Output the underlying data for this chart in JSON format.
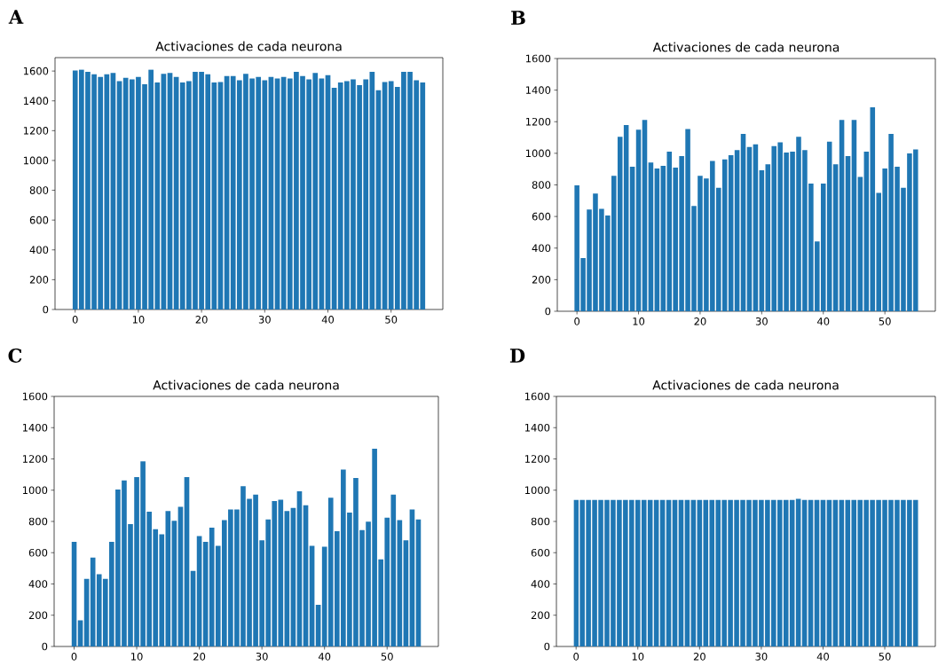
{
  "chart_data": [
    {
      "type": "bar",
      "title": "Activaciones de cada neurona",
      "annotations": [
        "A"
      ],
      "color": "#1f77b4",
      "xlim": [
        -3.19,
        58.19
      ],
      "xticks": [
        0,
        10,
        20,
        30,
        40,
        50
      ],
      "ylim": [
        0,
        1690
      ],
      "yticks": [
        0,
        200,
        400,
        600,
        800,
        1000,
        1200,
        1400,
        1600
      ],
      "x": [
        0,
        1,
        2,
        3,
        4,
        5,
        6,
        7,
        8,
        9,
        10,
        11,
        12,
        13,
        14,
        15,
        16,
        17,
        18,
        19,
        20,
        21,
        22,
        23,
        24,
        25,
        26,
        27,
        28,
        29,
        30,
        31,
        32,
        33,
        34,
        35,
        36,
        37,
        38,
        39,
        40,
        41,
        42,
        43,
        44,
        45,
        46,
        47,
        48,
        49,
        50,
        51,
        52,
        53,
        54,
        55
      ],
      "values": [
        1604,
        1610,
        1594,
        1578,
        1560,
        1578,
        1588,
        1532,
        1554,
        1544,
        1560,
        1511,
        1610,
        1523,
        1582,
        1588,
        1560,
        1523,
        1532,
        1594,
        1594,
        1578,
        1523,
        1526,
        1566,
        1566,
        1538,
        1582,
        1550,
        1560,
        1538,
        1560,
        1550,
        1560,
        1550,
        1594,
        1566,
        1544,
        1588,
        1550,
        1572,
        1487,
        1523,
        1532,
        1544,
        1505,
        1544,
        1594,
        1471,
        1526,
        1532,
        1493,
        1594,
        1594,
        1538,
        1523
      ]
    },
    {
      "type": "bar",
      "title": "Activaciones de cada neurona",
      "annotations": [
        "B"
      ],
      "color": "#1f77b4",
      "xlim": [
        -3.19,
        58.19
      ],
      "xticks": [
        0,
        10,
        20,
        30,
        40,
        50
      ],
      "ylim": [
        0,
        1600
      ],
      "yticks": [
        0,
        200,
        400,
        600,
        800,
        1000,
        1200,
        1400,
        1600
      ],
      "x": [
        0,
        1,
        2,
        3,
        4,
        5,
        6,
        7,
        8,
        9,
        10,
        11,
        12,
        13,
        14,
        15,
        16,
        17,
        18,
        19,
        20,
        21,
        22,
        23,
        24,
        25,
        26,
        27,
        28,
        29,
        30,
        31,
        32,
        33,
        34,
        35,
        36,
        37,
        38,
        39,
        40,
        41,
        42,
        43,
        44,
        45,
        46,
        47,
        48,
        49,
        50,
        51,
        52,
        53,
        54,
        55
      ],
      "values": [
        797,
        337,
        644,
        745,
        649,
        606,
        857,
        1104,
        1179,
        915,
        1149,
        1211,
        941,
        904,
        921,
        1011,
        909,
        982,
        1153,
        666,
        857,
        840,
        951,
        782,
        962,
        988,
        1020,
        1123,
        1040,
        1057,
        893,
        930,
        1046,
        1069,
        1005,
        1011,
        1104,
        1020,
        808,
        442,
        808,
        1074,
        930,
        1211,
        982,
        1211,
        850,
        1011,
        1291,
        750,
        904,
        1123,
        915,
        782,
        999,
        1025
      ]
    },
    {
      "type": "bar",
      "title": "Activaciones de cada neurona",
      "annotations": [
        "C"
      ],
      "color": "#1f77b4",
      "xlim": [
        -3.19,
        58.19
      ],
      "xticks": [
        0,
        10,
        20,
        30,
        40,
        50
      ],
      "ylim": [
        0,
        1600
      ],
      "yticks": [
        0,
        200,
        400,
        600,
        800,
        1000,
        1200,
        1400,
        1600
      ],
      "x": [
        0,
        1,
        2,
        3,
        4,
        5,
        6,
        7,
        8,
        9,
        10,
        11,
        12,
        13,
        14,
        15,
        16,
        17,
        18,
        19,
        20,
        21,
        22,
        23,
        24,
        25,
        26,
        27,
        28,
        29,
        30,
        31,
        32,
        33,
        34,
        35,
        36,
        37,
        38,
        39,
        40,
        41,
        42,
        43,
        44,
        45,
        46,
        47,
        48,
        49,
        50,
        51,
        52,
        53,
        54,
        55
      ],
      "values": [
        670,
        167,
        432,
        569,
        463,
        432,
        670,
        1004,
        1063,
        783,
        1084,
        1185,
        862,
        750,
        717,
        866,
        804,
        893,
        1084,
        484,
        706,
        670,
        760,
        644,
        808,
        877,
        877,
        1025,
        945,
        972,
        680,
        812,
        930,
        939,
        866,
        887,
        993,
        904,
        644,
        266,
        638,
        951,
        738,
        1132,
        856,
        1078,
        744,
        798,
        1265,
        558,
        824,
        972,
        808,
        680,
        877,
        812
      ]
    },
    {
      "type": "bar",
      "title": "Activaciones de cada neurona",
      "annotations": [
        "D"
      ],
      "color": "#1f77b4",
      "xlim": [
        -3.19,
        58.19
      ],
      "xticks": [
        0,
        10,
        20,
        30,
        40,
        50
      ],
      "ylim": [
        0,
        1600
      ],
      "yticks": [
        0,
        200,
        400,
        600,
        800,
        1000,
        1200,
        1400,
        1600
      ],
      "x": [
        0,
        1,
        2,
        3,
        4,
        5,
        6,
        7,
        8,
        9,
        10,
        11,
        12,
        13,
        14,
        15,
        16,
        17,
        18,
        19,
        20,
        21,
        22,
        23,
        24,
        25,
        26,
        27,
        28,
        29,
        30,
        31,
        32,
        33,
        34,
        35,
        36,
        37,
        38,
        39,
        40,
        41,
        42,
        43,
        44,
        45,
        46,
        47,
        48,
        49,
        50,
        51,
        52,
        53,
        54,
        55
      ],
      "values": [
        937,
        937,
        937,
        937,
        937,
        937,
        937,
        937,
        937,
        937,
        937,
        937,
        937,
        937,
        937,
        937,
        937,
        937,
        937,
        937,
        937,
        937,
        937,
        937,
        937,
        937,
        937,
        937,
        937,
        937,
        937,
        937,
        937,
        937,
        937,
        937,
        945,
        937,
        937,
        937,
        937,
        937,
        937,
        937,
        937,
        937,
        937,
        937,
        937,
        937,
        937,
        937,
        937,
        937,
        937,
        937
      ]
    }
  ]
}
